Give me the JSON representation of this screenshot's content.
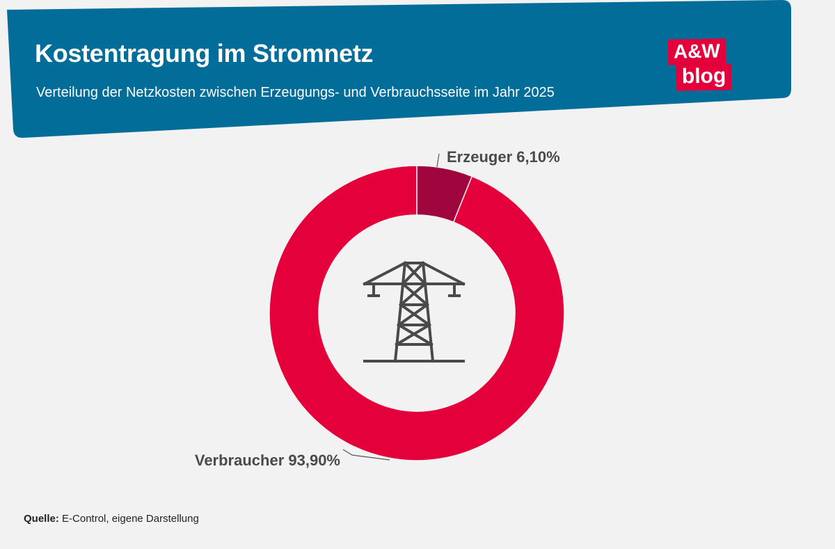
{
  "header": {
    "title": "Kostentragung im Stromnetz",
    "subtitle": "Verteilung der Netzkosten zwischen Erzeugungs- und Verbrauchsseite im Jahr 2025",
    "banner_color": "#036d99"
  },
  "logo": {
    "line1": "A&W",
    "line2": "blog",
    "color": "#e4003a"
  },
  "chart_data": {
    "type": "pie",
    "style": "donut",
    "title": "",
    "center_icon": "power-pylon-icon",
    "slices": [
      {
        "label": "Erzeuger",
        "value": 6.1,
        "display": "Erzeuger 6,10%",
        "color": "#a0063e"
      },
      {
        "label": "Verbraucher",
        "value": 93.9,
        "display": "Verbraucher 93,90%",
        "color": "#e4003a"
      }
    ]
  },
  "footer": {
    "source_label": "Quelle:",
    "source_text": " E-Control, eigene Darstellung"
  }
}
